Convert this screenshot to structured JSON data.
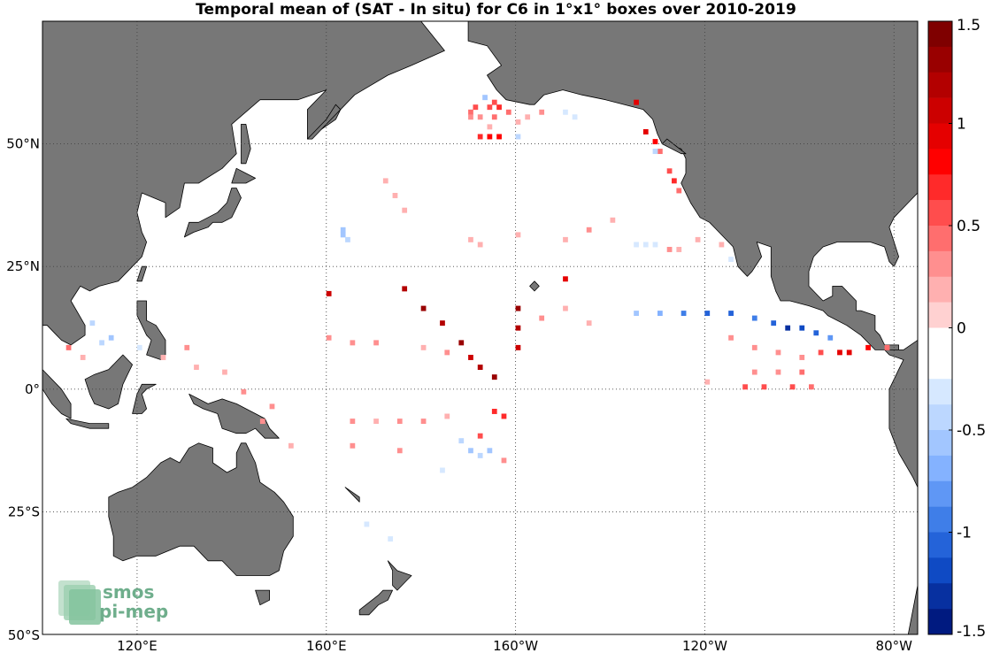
{
  "figure": {
    "title": "Temporal mean of (SAT - In situ) for C6 in 1°x1° boxes over 2010-2019"
  },
  "map": {
    "type": "geographic map with gridded anomaly cells",
    "projection": "equirectangular",
    "extent": {
      "lon_min": 100,
      "lon_max": 285,
      "lat_min": -50,
      "lat_max": 75
    },
    "land_color": "#777777",
    "ocean_color": "#ffffff",
    "graticule": "dotted",
    "lat_ticks": [
      {
        "lat": 50,
        "label": "50°N"
      },
      {
        "lat": 25,
        "label": "25°N"
      },
      {
        "lat": 0,
        "label": "0°"
      },
      {
        "lat": -25,
        "label": "25°S"
      },
      {
        "lat": -50,
        "label": "50°S"
      }
    ],
    "lon_ticks": [
      {
        "lon": 120,
        "label": "120°E"
      },
      {
        "lon": 160,
        "label": "160°E"
      },
      {
        "lon": 200,
        "label": "160°W"
      },
      {
        "lon": 240,
        "label": "120°W"
      },
      {
        "lon": 280,
        "label": "80°W"
      }
    ],
    "cells": [
      {
        "lon": -170,
        "lat": 56,
        "v": 0.5
      },
      {
        "lon": -169,
        "lat": 57,
        "v": 0.55
      },
      {
        "lon": -166,
        "lat": 57,
        "v": 0.6
      },
      {
        "lon": -164,
        "lat": 57,
        "v": 0.7
      },
      {
        "lon": -162,
        "lat": 56,
        "v": 0.5
      },
      {
        "lon": -170,
        "lat": 55,
        "v": 0.35
      },
      {
        "lon": -168,
        "lat": 55,
        "v": 0.3
      },
      {
        "lon": -165,
        "lat": 55,
        "v": 0.45
      },
      {
        "lon": -167,
        "lat": 59,
        "v": -0.5
      },
      {
        "lon": -165,
        "lat": 58,
        "v": 0.6
      },
      {
        "lon": -166,
        "lat": 53,
        "v": 0.2
      },
      {
        "lon": -160,
        "lat": 54,
        "v": 0.2
      },
      {
        "lon": -158,
        "lat": 55,
        "v": 0.25
      },
      {
        "lon": -155,
        "lat": 56,
        "v": 0.3
      },
      {
        "lon": -150,
        "lat": 56,
        "v": -0.3
      },
      {
        "lon": -148,
        "lat": 55,
        "v": -0.35
      },
      {
        "lon": -168,
        "lat": 51,
        "v": 0.75
      },
      {
        "lon": -166,
        "lat": 51,
        "v": 0.8
      },
      {
        "lon": -164,
        "lat": 51,
        "v": 0.85
      },
      {
        "lon": -160,
        "lat": 51,
        "v": -0.45
      },
      {
        "lon": -135,
        "lat": 58,
        "v": 0.9
      },
      {
        "lon": -133,
        "lat": 52,
        "v": 0.9
      },
      {
        "lon": -131,
        "lat": 50,
        "v": 0.8
      },
      {
        "lon": -130,
        "lat": 48,
        "v": 0.5
      },
      {
        "lon": -128,
        "lat": 44,
        "v": 0.6
      },
      {
        "lon": -127,
        "lat": 42,
        "v": 0.7
      },
      {
        "lon": -126,
        "lat": 40,
        "v": 0.4
      },
      {
        "lon": -131,
        "lat": 48,
        "v": -0.4
      },
      {
        "lon": -188,
        "lat": 42,
        "v": 0.2
      },
      {
        "lon": -186,
        "lat": 39,
        "v": 0.15
      },
      {
        "lon": -184,
        "lat": 36,
        "v": 0.2
      },
      {
        "lon": -170,
        "lat": 30,
        "v": 0.15
      },
      {
        "lon": -168,
        "lat": 29,
        "v": 0.2
      },
      {
        "lon": -160,
        "lat": 31,
        "v": 0.25
      },
      {
        "lon": -150,
        "lat": 30,
        "v": 0.2
      },
      {
        "lon": -145,
        "lat": 32,
        "v": 0.3
      },
      {
        "lon": -140,
        "lat": 34,
        "v": 0.25
      },
      {
        "lon": -135,
        "lat": 29,
        "v": -0.3
      },
      {
        "lon": -133,
        "lat": 29,
        "v": -0.35
      },
      {
        "lon": -131,
        "lat": 29,
        "v": -0.25
      },
      {
        "lon": -128,
        "lat": 28,
        "v": 0.3
      },
      {
        "lon": -126,
        "lat": 28,
        "v": 0.25
      },
      {
        "lon": -122,
        "lat": 30,
        "v": 0.15
      },
      {
        "lon": -117,
        "lat": 29,
        "v": 0.2
      },
      {
        "lon": -115,
        "lat": 26,
        "v": -0.3
      },
      {
        "lon": -197,
        "lat": 32,
        "v": -0.5
      },
      {
        "lon": -197,
        "lat": 31,
        "v": -0.5
      },
      {
        "lon": -196,
        "lat": 30,
        "v": -0.45
      },
      {
        "lon": -184,
        "lat": 20,
        "v": 1.2
      },
      {
        "lon": -180,
        "lat": 16,
        "v": 1.3
      },
      {
        "lon": -176,
        "lat": 13,
        "v": 1.25
      },
      {
        "lon": -172,
        "lat": 9,
        "v": 1.3
      },
      {
        "lon": -170,
        "lat": 6,
        "v": 1.1
      },
      {
        "lon": -168,
        "lat": 4,
        "v": 1.2
      },
      {
        "lon": -165,
        "lat": 2,
        "v": 1.3
      },
      {
        "lon": -160,
        "lat": 8,
        "v": 1.1
      },
      {
        "lon": -160,
        "lat": 12,
        "v": 1.25
      },
      {
        "lon": -160,
        "lat": 16,
        "v": 1.3
      },
      {
        "lon": -200,
        "lat": 19,
        "v": 1.1
      },
      {
        "lon": -150,
        "lat": 22,
        "v": 0.9
      },
      {
        "lon": -200,
        "lat": 10,
        "v": 0.3
      },
      {
        "lon": -195,
        "lat": 9,
        "v": 0.35
      },
      {
        "lon": -190,
        "lat": 9,
        "v": 0.3
      },
      {
        "lon": -180,
        "lat": 8,
        "v": 0.25
      },
      {
        "lon": -175,
        "lat": 7,
        "v": 0.35
      },
      {
        "lon": -155,
        "lat": 14,
        "v": 0.3
      },
      {
        "lon": -150,
        "lat": 16,
        "v": 0.25
      },
      {
        "lon": -145,
        "lat": 13,
        "v": 0.2
      },
      {
        "lon": -135,
        "lat": 15,
        "v": -0.6
      },
      {
        "lon": -130,
        "lat": 15,
        "v": -0.7
      },
      {
        "lon": -125,
        "lat": 15,
        "v": -0.9
      },
      {
        "lon": -120,
        "lat": 15,
        "v": -1.1
      },
      {
        "lon": -115,
        "lat": 15,
        "v": -1.0
      },
      {
        "lon": -110,
        "lat": 14,
        "v": -0.9
      },
      {
        "lon": -106,
        "lat": 13,
        "v": -1.1
      },
      {
        "lon": -103,
        "lat": 12,
        "v": -1.25
      },
      {
        "lon": -100,
        "lat": 12,
        "v": -1.2
      },
      {
        "lon": -97,
        "lat": 11,
        "v": -1.0
      },
      {
        "lon": -94,
        "lat": 10,
        "v": -0.8
      },
      {
        "lon": -115,
        "lat": 10,
        "v": 0.3
      },
      {
        "lon": -110,
        "lat": 8,
        "v": 0.35
      },
      {
        "lon": -105,
        "lat": 7,
        "v": 0.3
      },
      {
        "lon": -100,
        "lat": 6,
        "v": 0.35
      },
      {
        "lon": -96,
        "lat": 7,
        "v": 0.6
      },
      {
        "lon": -92,
        "lat": 7,
        "v": 0.9
      },
      {
        "lon": -90,
        "lat": 7,
        "v": 1.0
      },
      {
        "lon": -86,
        "lat": 8,
        "v": 0.8
      },
      {
        "lon": -82,
        "lat": 8,
        "v": 0.5
      },
      {
        "lon": -100,
        "lat": 3,
        "v": 0.4
      },
      {
        "lon": -105,
        "lat": 3,
        "v": 0.3
      },
      {
        "lon": -110,
        "lat": 3,
        "v": 0.35
      },
      {
        "lon": -120,
        "lat": 1,
        "v": 0.25
      },
      {
        "lon": -112,
        "lat": 0,
        "v": 0.6
      },
      {
        "lon": -108,
        "lat": 0,
        "v": 0.6
      },
      {
        "lon": -102,
        "lat": 0,
        "v": 0.55
      },
      {
        "lon": -98,
        "lat": 0,
        "v": 0.4
      },
      {
        "lon": -195,
        "lat": -7,
        "v": 0.3
      },
      {
        "lon": -190,
        "lat": -7,
        "v": 0.25
      },
      {
        "lon": -185,
        "lat": -7,
        "v": 0.35
      },
      {
        "lon": -180,
        "lat": -7,
        "v": 0.3
      },
      {
        "lon": -175,
        "lat": -6,
        "v": 0.25
      },
      {
        "lon": -165,
        "lat": -5,
        "v": 0.7
      },
      {
        "lon": -163,
        "lat": -6,
        "v": 0.75
      },
      {
        "lon": -168,
        "lat": -10,
        "v": 0.6
      },
      {
        "lon": -170,
        "lat": -13,
        "v": -0.5
      },
      {
        "lon": -168,
        "lat": -14,
        "v": -0.45
      },
      {
        "lon": -166,
        "lat": -13,
        "v": -0.5
      },
      {
        "lon": -172,
        "lat": -11,
        "v": -0.4
      },
      {
        "lon": -163,
        "lat": -15,
        "v": 0.3
      },
      {
        "lon": -176,
        "lat": -17,
        "v": -0.3
      },
      {
        "lon": -150,
        "lat": -14,
        "v": -0.2
      },
      {
        "lon": -195,
        "lat": -12,
        "v": 0.35
      },
      {
        "lon": -185,
        "lat": -13,
        "v": 0.3
      },
      {
        "lon": -250,
        "lat": 13,
        "v": -0.4
      },
      {
        "lon": -248,
        "lat": 9,
        "v": -0.45
      },
      {
        "lon": -246,
        "lat": 10,
        "v": -0.5
      },
      {
        "lon": -252,
        "lat": 6,
        "v": 0.2
      },
      {
        "lon": -255,
        "lat": 8,
        "v": 0.4
      },
      {
        "lon": -240,
        "lat": 8,
        "v": -0.3
      },
      {
        "lon": -235,
        "lat": 6,
        "v": 0.2
      },
      {
        "lon": -230,
        "lat": 8,
        "v": 0.3
      },
      {
        "lon": -228,
        "lat": 4,
        "v": 0.25
      },
      {
        "lon": -222,
        "lat": 3,
        "v": 0.2
      },
      {
        "lon": -218,
        "lat": -1,
        "v": 0.3
      },
      {
        "lon": -212,
        "lat": -4,
        "v": 0.35
      },
      {
        "lon": -214,
        "lat": -7,
        "v": 0.3
      },
      {
        "lon": -208,
        "lat": -12,
        "v": 0.2
      },
      {
        "lon": -190,
        "lat": -30,
        "v": -0.2
      },
      {
        "lon": -187,
        "lat": -31,
        "v": -0.25
      },
      {
        "lon": -192,
        "lat": -28,
        "v": -0.3
      }
    ],
    "logo": {
      "line1": "smos",
      "line2": "pi-mep",
      "color": "#6fae8c"
    }
  },
  "colorbar": {
    "min": -1.5,
    "max": 1.5,
    "levels": 24,
    "tick_labels": [
      "1.5",
      "1",
      "0.5",
      "0",
      "-0.5",
      "-1",
      "-1.5"
    ],
    "tick_values": [
      1.5,
      1.0,
      0.5,
      0.0,
      -0.5,
      -1.0,
      -1.5
    ],
    "colors_top_to_bottom": [
      "#7f0000",
      "#990000",
      "#b30000",
      "#cc0000",
      "#e50000",
      "#ff0000",
      "#ff2a2a",
      "#ff4d4d",
      "#ff6e6e",
      "#ff8f8f",
      "#ffb0b0",
      "#ffd1d1",
      "#ffffff",
      "#ffffff",
      "#d6e8ff",
      "#bcd7ff",
      "#a2c6ff",
      "#84b2ff",
      "#5f97f5",
      "#3f7ee8",
      "#2463d9",
      "#0f4ac4",
      "#0730a0",
      "#001a80"
    ]
  }
}
